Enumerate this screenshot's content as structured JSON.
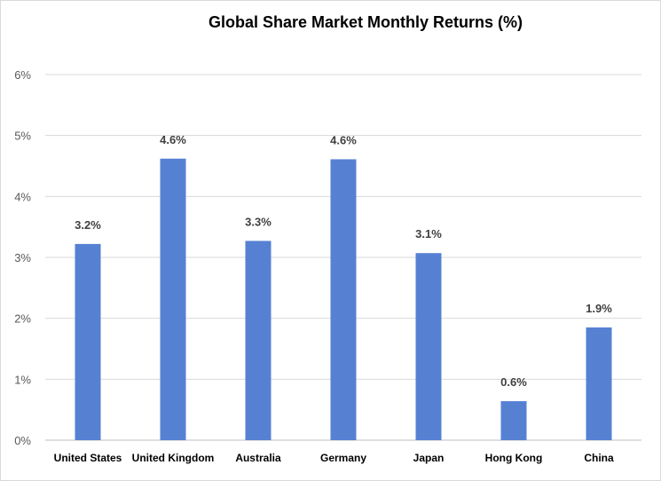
{
  "chart_data": {
    "type": "bar",
    "title": "Global Share Market Monthly Returns (%)",
    "categories": [
      "United States",
      "United Kingdom",
      "Australia",
      "Germany",
      "Japan",
      "Hong Kong",
      "China"
    ],
    "values": [
      3.2,
      4.6,
      3.3,
      4.6,
      3.1,
      0.6,
      1.9
    ],
    "bar_values_read": [
      3.22,
      4.62,
      3.27,
      4.61,
      3.07,
      0.64,
      1.85
    ],
    "data_labels": [
      "3.2%",
      "4.6%",
      "3.3%",
      "4.6%",
      "3.1%",
      "0.6%",
      "1.9%"
    ],
    "y_ticks": [
      "0%",
      "1%",
      "2%",
      "3%",
      "4%",
      "5%",
      "6%"
    ],
    "ylim": [
      0,
      6
    ],
    "xlabel": "",
    "ylabel": "",
    "grid": true,
    "legend": "none",
    "bar_color": "#5681d3"
  }
}
